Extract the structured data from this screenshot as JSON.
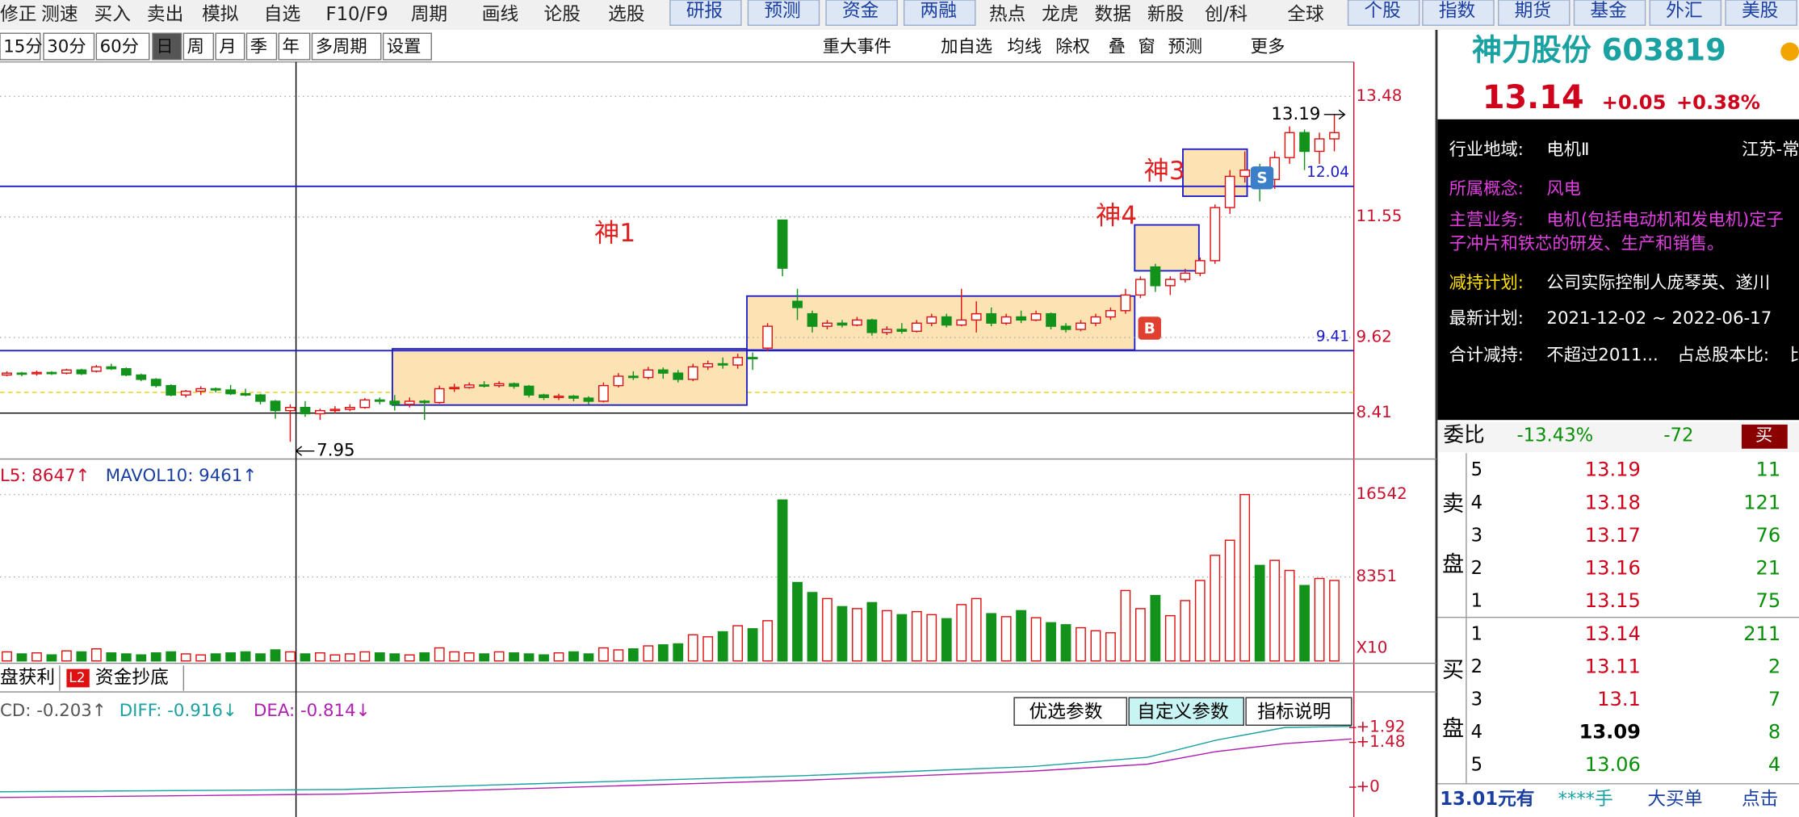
{
  "menu": [
    "修正",
    "测速",
    "买入",
    "卖出",
    "模拟",
    "自选",
    "F10/F9",
    "周期",
    "画线",
    "论股",
    "选股"
  ],
  "menu_buttons": [
    "研报",
    "预测",
    "资金",
    "两融"
  ],
  "menu2": [
    "热点",
    "龙虎",
    "数据",
    "新股",
    "创/科",
    "全球"
  ],
  "menu_buttons2": [
    "个股",
    "指数",
    "期货",
    "基金",
    "外汇",
    "美股"
  ],
  "periods": [
    "15分",
    "30分",
    "60分",
    "日",
    "周",
    "月",
    "季",
    "年",
    "多周期",
    "设置"
  ],
  "tools": [
    "重大事件",
    "加自选",
    "均线",
    "除权",
    "叠",
    "窗",
    "预测",
    "更多"
  ],
  "kline": {
    "price_ticks": [
      13.48,
      11.55,
      9.62,
      8.41
    ],
    "high_label": 13.19,
    "low_label": 7.95,
    "support_lines": [
      12.04,
      9.41
    ],
    "annotations": [
      "神1",
      "神4",
      "神3"
    ],
    "markers": [
      "B",
      "S"
    ],
    "candles": [
      [
        9.02,
        9.05,
        9.08,
        9.0
      ],
      [
        9.05,
        9.04,
        9.07,
        9.0
      ],
      [
        9.04,
        9.06,
        9.09,
        9.01
      ],
      [
        9.06,
        9.05,
        9.08,
        9.02
      ],
      [
        9.05,
        9.1,
        9.12,
        9.03
      ],
      [
        9.1,
        9.04,
        9.12,
        9.02
      ],
      [
        9.08,
        9.15,
        9.18,
        9.06
      ],
      [
        9.15,
        9.12,
        9.2,
        9.1
      ],
      [
        9.12,
        9.02,
        9.14,
        9.0
      ],
      [
        9.02,
        8.95,
        9.04,
        8.92
      ],
      [
        8.95,
        8.85,
        8.97,
        8.82
      ],
      [
        8.85,
        8.7,
        8.87,
        8.68
      ],
      [
        8.7,
        8.76,
        8.78,
        8.66
      ],
      [
        8.76,
        8.8,
        8.84,
        8.7
      ],
      [
        8.8,
        8.78,
        8.82,
        8.74
      ],
      [
        8.78,
        8.72,
        8.86,
        8.7
      ],
      [
        8.72,
        8.7,
        8.8,
        8.68
      ],
      [
        8.7,
        8.6,
        8.72,
        8.55
      ],
      [
        8.6,
        8.45,
        8.62,
        8.32
      ],
      [
        8.45,
        8.5,
        8.55,
        7.95
      ],
      [
        8.5,
        8.4,
        8.6,
        8.35
      ],
      [
        8.4,
        8.45,
        8.48,
        8.3
      ],
      [
        8.45,
        8.47,
        8.52,
        8.4
      ],
      [
        8.47,
        8.5,
        8.55,
        8.44
      ],
      [
        8.5,
        8.62,
        8.65,
        8.48
      ],
      [
        8.62,
        8.6,
        8.66,
        8.55
      ],
      [
        8.6,
        8.55,
        8.7,
        8.45
      ],
      [
        8.55,
        8.6,
        8.66,
        8.5
      ],
      [
        8.6,
        8.58,
        8.62,
        8.3
      ],
      [
        8.58,
        8.8,
        8.85,
        8.56
      ],
      [
        8.8,
        8.82,
        8.88,
        8.75
      ],
      [
        8.82,
        8.86,
        8.9,
        8.8
      ],
      [
        8.86,
        8.85,
        8.92,
        8.82
      ],
      [
        8.85,
        8.88,
        8.92,
        8.82
      ],
      [
        8.88,
        8.84,
        8.9,
        8.8
      ],
      [
        8.84,
        8.7,
        8.86,
        8.66
      ],
      [
        8.7,
        8.66,
        8.72,
        8.62
      ],
      [
        8.66,
        8.68,
        8.72,
        8.62
      ],
      [
        8.68,
        8.65,
        8.7,
        8.6
      ],
      [
        8.65,
        8.6,
        8.68,
        8.55
      ],
      [
        8.6,
        8.85,
        8.9,
        8.58
      ],
      [
        8.85,
        9.0,
        9.05,
        8.82
      ],
      [
        9.0,
        8.98,
        9.08,
        8.94
      ],
      [
        8.98,
        9.1,
        9.15,
        8.95
      ],
      [
        9.1,
        9.05,
        9.14,
        8.96
      ],
      [
        9.05,
        8.95,
        9.1,
        8.9
      ],
      [
        8.95,
        9.15,
        9.2,
        8.92
      ],
      [
        9.15,
        9.2,
        9.25,
        9.1
      ],
      [
        9.2,
        9.18,
        9.3,
        9.12
      ],
      [
        9.18,
        9.3,
        9.36,
        9.12
      ],
      [
        9.3,
        9.28,
        9.38,
        9.1
      ],
      [
        9.45,
        9.8,
        9.85,
        9.4
      ],
      [
        11.5,
        10.73,
        11.5,
        10.6
      ],
      [
        10.2,
        10.1,
        10.4,
        9.9
      ],
      [
        10.0,
        9.8,
        10.05,
        9.7
      ],
      [
        9.8,
        9.85,
        9.9,
        9.75
      ],
      [
        9.85,
        9.82,
        9.9,
        9.78
      ],
      [
        9.82,
        9.9,
        9.95,
        9.8
      ],
      [
        9.9,
        9.7,
        9.92,
        9.65
      ],
      [
        9.7,
        9.75,
        9.8,
        9.66
      ],
      [
        9.75,
        9.72,
        9.85,
        9.68
      ],
      [
        9.72,
        9.85,
        9.9,
        9.7
      ],
      [
        9.85,
        9.95,
        10.0,
        9.8
      ],
      [
        9.95,
        9.82,
        10.0,
        9.78
      ],
      [
        9.82,
        9.9,
        10.4,
        9.8
      ],
      [
        9.9,
        10.0,
        10.2,
        9.7
      ],
      [
        10.0,
        9.85,
        10.1,
        9.8
      ],
      [
        9.85,
        9.95,
        10.0,
        9.82
      ],
      [
        9.95,
        9.9,
        10.05,
        9.85
      ],
      [
        9.9,
        10.0,
        10.05,
        9.88
      ],
      [
        10.0,
        9.8,
        10.02,
        9.75
      ],
      [
        9.8,
        9.75,
        9.85,
        9.7
      ],
      [
        9.75,
        9.85,
        9.9,
        9.72
      ],
      [
        9.85,
        9.95,
        10.0,
        9.8
      ],
      [
        9.95,
        10.05,
        10.1,
        9.9
      ],
      [
        10.05,
        10.3,
        10.4,
        10.0
      ],
      [
        10.3,
        10.55,
        10.6,
        10.25
      ],
      [
        10.75,
        10.45,
        10.8,
        10.35
      ],
      [
        10.45,
        10.55,
        10.6,
        10.3
      ],
      [
        10.55,
        10.65,
        10.72,
        10.5
      ],
      [
        10.65,
        10.85,
        10.9,
        10.6
      ],
      [
        10.85,
        11.7,
        11.75,
        10.8
      ],
      [
        11.7,
        12.2,
        12.3,
        11.6
      ],
      [
        12.2,
        12.3,
        12.6,
        12.1
      ],
      [
        12.3,
        12.15,
        12.4,
        11.8
      ],
      [
        12.15,
        12.5,
        12.6,
        12.0
      ],
      [
        12.5,
        12.9,
        13.0,
        12.4
      ],
      [
        12.9,
        12.6,
        12.95,
        12.3
      ],
      [
        12.6,
        12.8,
        12.9,
        12.4
      ],
      [
        12.8,
        12.9,
        13.19,
        12.6
      ]
    ]
  },
  "volume": {
    "legend": [
      "L5: 8647↑",
      "MAVOL10: 9461↑"
    ],
    "ticks": [
      16542,
      8351
    ],
    "unit": "X10",
    "values": [
      900,
      700,
      800,
      600,
      1000,
      900,
      1200,
      800,
      700,
      600,
      800,
      900,
      700,
      600,
      700,
      800,
      900,
      700,
      1100,
      900,
      700,
      800,
      600,
      700,
      900,
      800,
      700,
      600,
      800,
      1300,
      900,
      800,
      700,
      900,
      800,
      700,
      600,
      800,
      900,
      700,
      1300,
      1100,
      1200,
      1500,
      1600,
      1700,
      2600,
      2400,
      2900,
      3500,
      3200,
      4000,
      16000,
      7800,
      6800,
      6200,
      5400,
      5200,
      5800,
      5000,
      4600,
      4900,
      4600,
      4200,
      5600,
      6200,
      4700,
      4400,
      5000,
      4300,
      3800,
      3600,
      3300,
      3000,
      2800,
      7000,
      5200,
      6500,
      4500,
      6000,
      8000,
      10500,
      12000,
      16542,
      9500,
      10000,
      9000,
      7500,
      8200,
      8000
    ]
  },
  "tabs": [
    "盘获利",
    "L2",
    "资金抄底"
  ],
  "macd": {
    "legend": [
      "CD: -0.203↑",
      "DIFF: -0.916↓",
      "DEA: -0.814↓"
    ],
    "buttons": [
      "优选参数",
      "自定义参数",
      "指标说明"
    ],
    "ticks": [
      {
        "value": 1.92,
        "label": "+1.92"
      },
      {
        "value": 1.48,
        "label": "+1.48"
      },
      {
        "value": 0,
        "label": "+0"
      }
    ]
  },
  "quote": {
    "name": "神力股份 603819",
    "price": "13.14",
    "change": "+0.05",
    "change_pct": "+0.38%",
    "info": [
      [
        "行业地域:",
        "电机Ⅱ",
        "江苏-常"
      ],
      [
        "所属概念:",
        "风电"
      ],
      [
        "主营业务:",
        "电机(包括电动机和发电机)定子",
        "子冲片和铁芯的研发、生产和销售。"
      ],
      [
        "减持计划:",
        "公司实际控制人庞琴英、遂川"
      ],
      [
        "最新计划:",
        "2021-12-02 ~ 2022-06-17"
      ],
      [
        "合计减持:",
        "不超过2011...",
        "占总股本比:",
        "比"
      ]
    ],
    "weibi": [
      "委比",
      "-13.43%",
      "-72",
      "买"
    ],
    "sell_label": [
      "卖",
      "盘"
    ],
    "buy_label": [
      "买",
      "盘"
    ],
    "sell": [
      [
        5,
        13.19,
        11
      ],
      [
        4,
        13.18,
        121
      ],
      [
        3,
        13.17,
        76
      ],
      [
        2,
        13.16,
        21
      ],
      [
        1,
        13.15,
        75
      ]
    ],
    "buy": [
      [
        1,
        13.14,
        211
      ],
      [
        2,
        13.11,
        2
      ],
      [
        3,
        13.1,
        7
      ],
      [
        4,
        13.09,
        8
      ],
      [
        5,
        13.06,
        4
      ]
    ],
    "buy_colors": [
      "#d0021b",
      "#d0021b",
      "#d0021b",
      "#000000",
      "#079007"
    ],
    "footer": [
      "13.01元有",
      "****手",
      "大买单",
      "点击"
    ]
  }
}
